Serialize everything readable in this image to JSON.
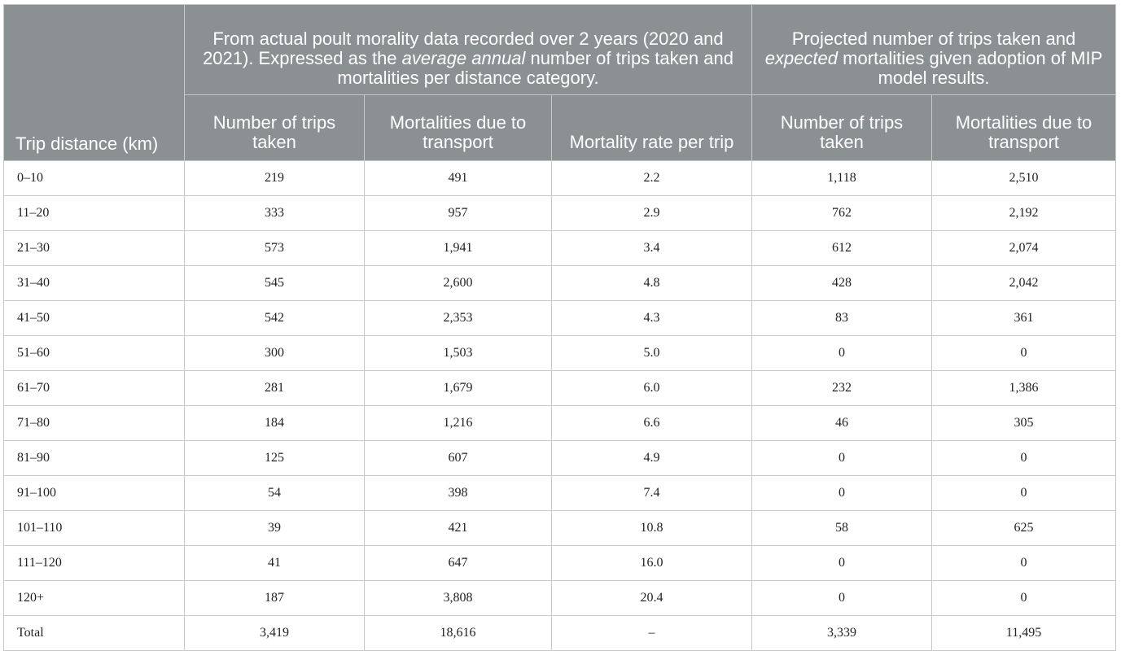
{
  "table": {
    "corner_header": "Trip distance (km)",
    "groups": {
      "actual": {
        "text_before": "From actual poult morality data recorded over 2 years (2020 and 2021). Expressed as the ",
        "text_emphasis": "average annual",
        "text_after": " number of trips taken and mortalities per distance category."
      },
      "projected": {
        "text_before": "Projected number of trips taken and ",
        "text_emphasis": "expected",
        "text_after": " mortalities given adoption of MIP model results."
      }
    },
    "columns": [
      "Number of trips taken",
      "Mortalities due to transport",
      "Mortality rate per trip",
      "Number of trips taken",
      "Mortalities due to transport"
    ],
    "rows": [
      [
        "0–10",
        "219",
        "491",
        "2.2",
        "1,118",
        "2,510"
      ],
      [
        "11–20",
        "333",
        "957",
        "2.9",
        "762",
        "2,192"
      ],
      [
        "21–30",
        "573",
        "1,941",
        "3.4",
        "612",
        "2,074"
      ],
      [
        "31–40",
        "545",
        "2,600",
        "4.8",
        "428",
        "2,042"
      ],
      [
        "41–50",
        "542",
        "2,353",
        "4.3",
        "83",
        "361"
      ],
      [
        "51–60",
        "300",
        "1,503",
        "5.0",
        "0",
        "0"
      ],
      [
        "61–70",
        "281",
        "1,679",
        "6.0",
        "232",
        "1,386"
      ],
      [
        "71–80",
        "184",
        "1,216",
        "6.6",
        "46",
        "305"
      ],
      [
        "81–90",
        "125",
        "607",
        "4.9",
        "0",
        "0"
      ],
      [
        "91–100",
        "54",
        "398",
        "7.4",
        "0",
        "0"
      ],
      [
        "101–110",
        "39",
        "421",
        "10.8",
        "58",
        "625"
      ],
      [
        "111–120",
        "41",
        "647",
        "16.0",
        "0",
        "0"
      ],
      [
        "120+",
        "187",
        "3,808",
        "20.4",
        "0",
        "0"
      ],
      [
        "Total",
        "3,419",
        "18,616",
        "–",
        "3,339",
        "11,495"
      ]
    ]
  },
  "colors": {
    "header_background": "#8b9192",
    "header_text": "#ffffff",
    "grid_line": "#c6c9ca",
    "body_text": "#222222"
  }
}
